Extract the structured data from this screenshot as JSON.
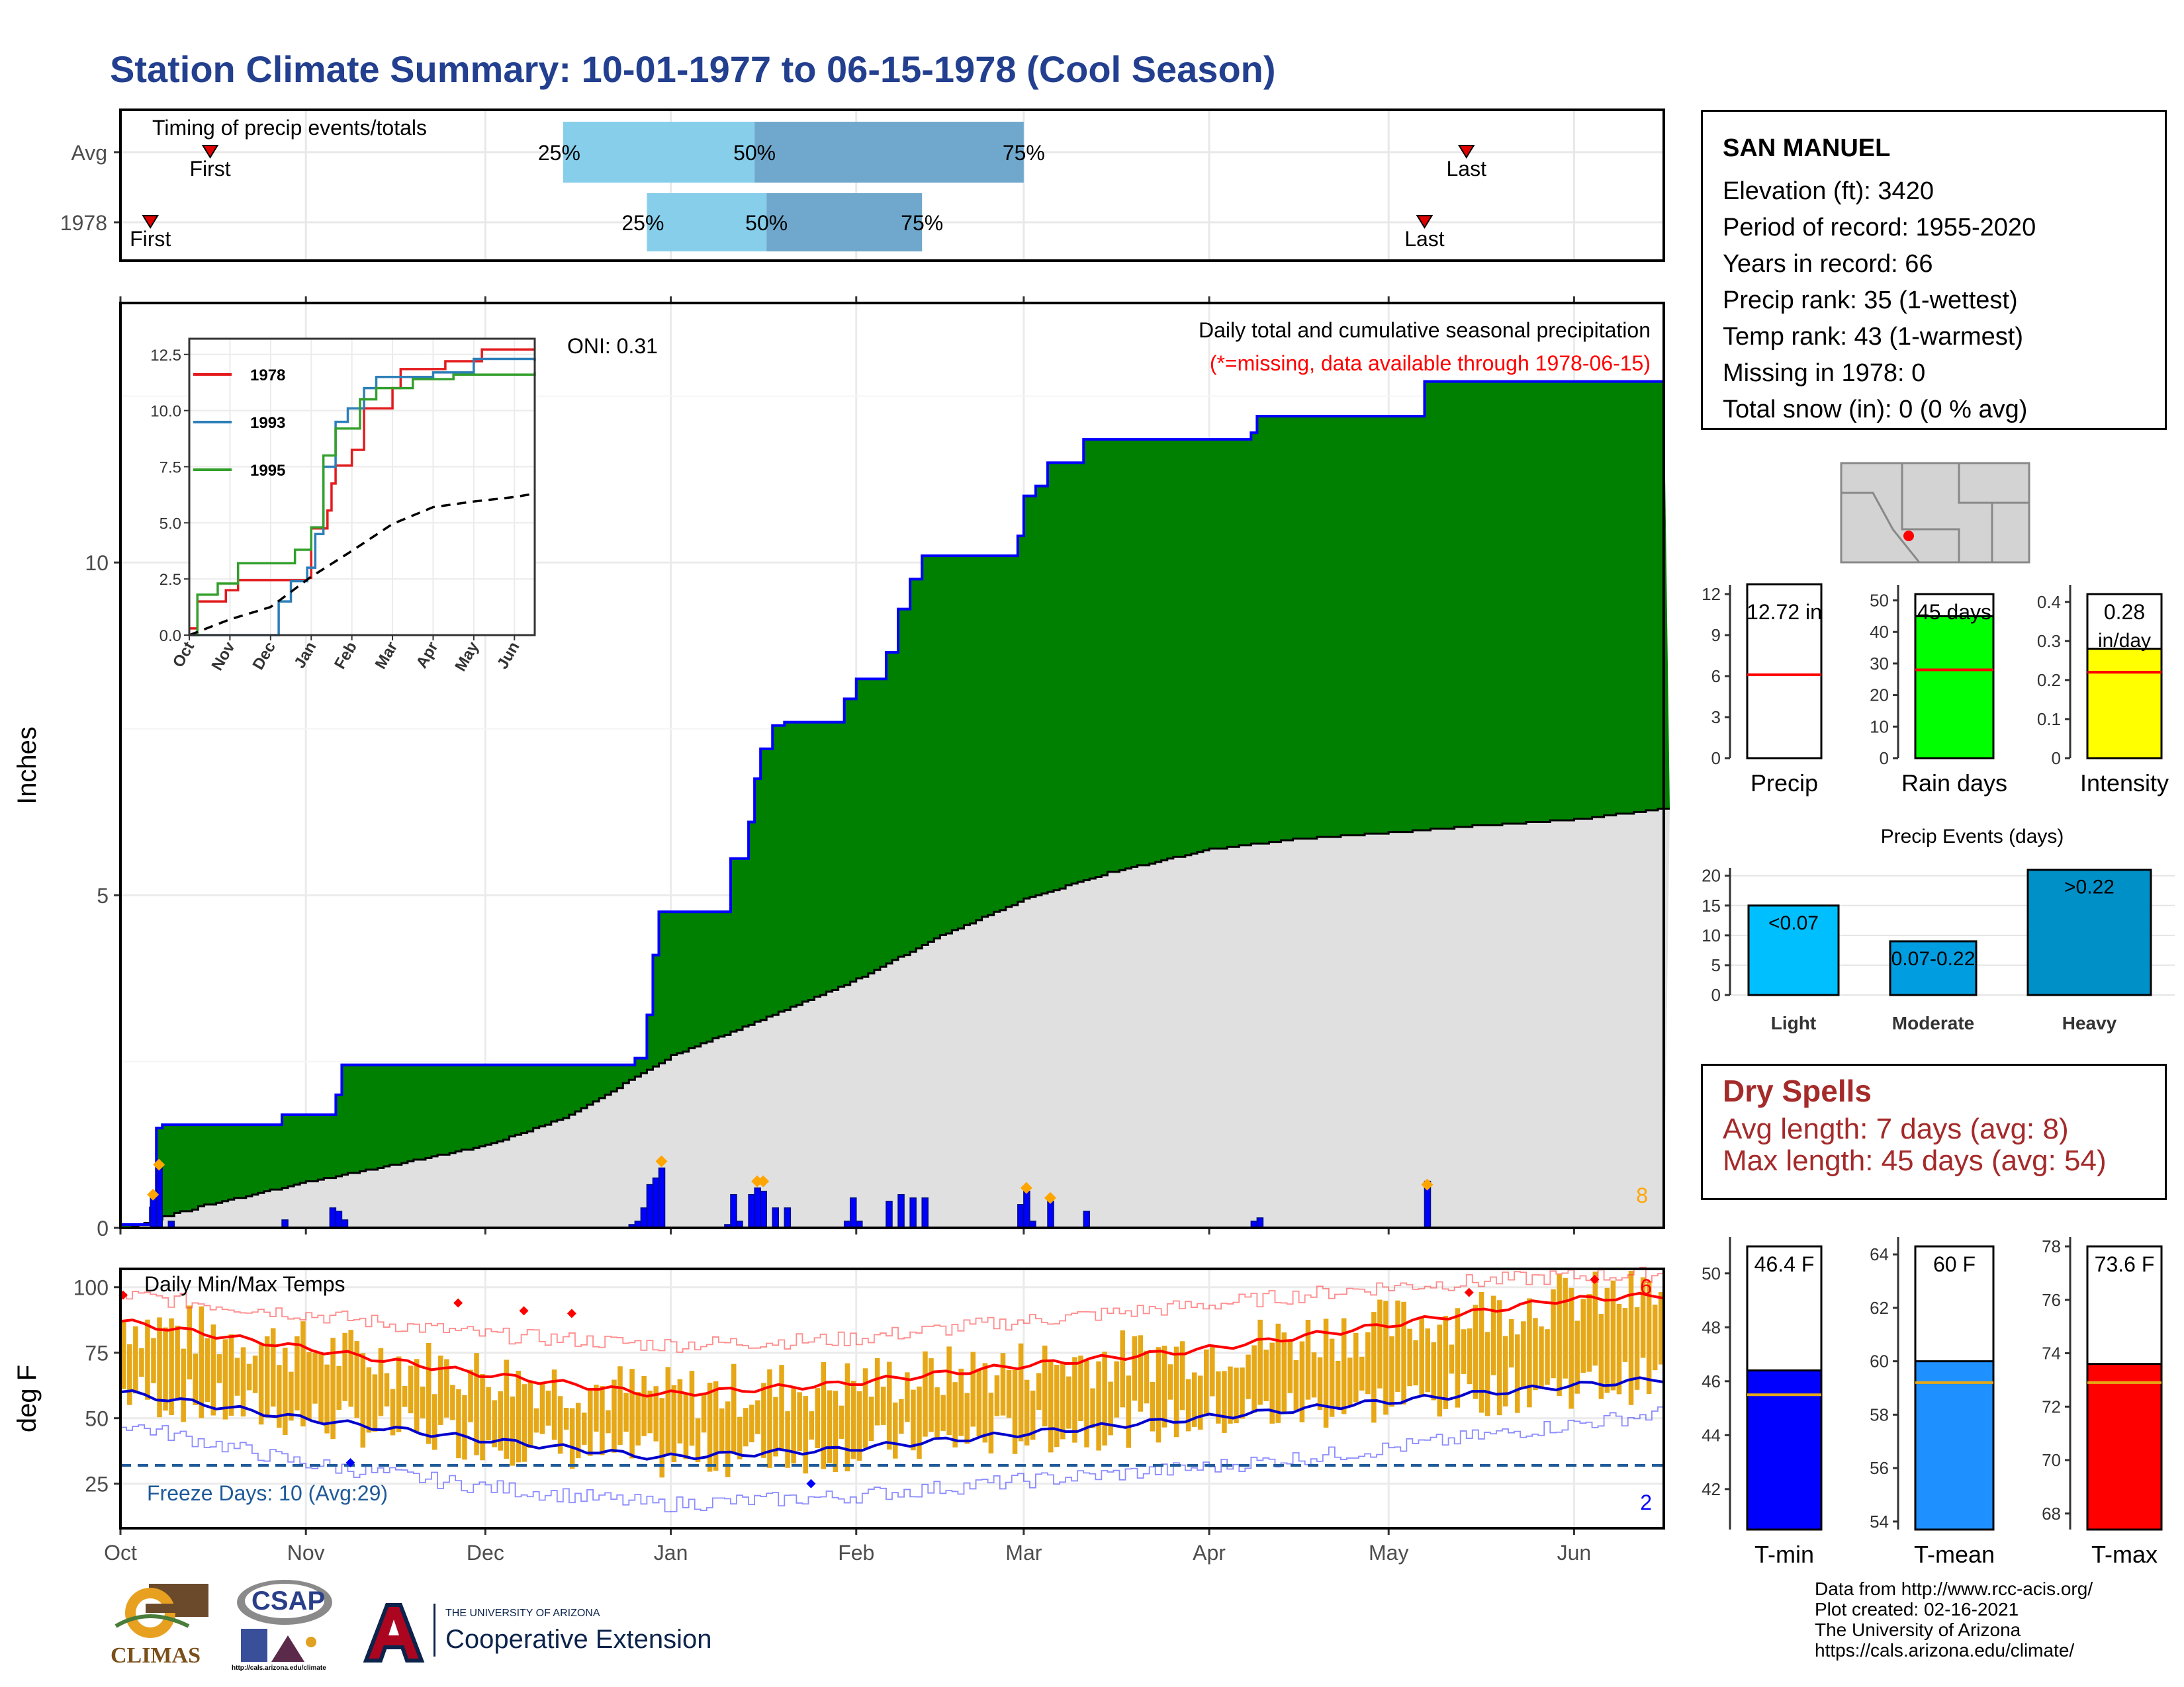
{
  "title": "Station Climate Summary: 10-01-1977 to 06-15-1978 (Cool Season)",
  "station": {
    "name": "SAN MANUEL",
    "lines": [
      "Elevation (ft): 3420",
      "Period of record: 1955-2020",
      "Years in record: 66",
      "Precip rank: 35 (1-wettest)",
      "Temp rank: 43 (1-warmest)",
      "Missing in 1978: 0",
      "Total snow (in): 0 (0 % avg)"
    ]
  },
  "dry_spells": {
    "title": "Dry Spells",
    "avg": "Avg length: 7 days (avg: 8)",
    "max": "Max length: 45 days (avg: 54)"
  },
  "credits": [
    "Data from http://www.rcc-acis.org/",
    "Plot created: 02-16-2021",
    "The University of Arizona",
    "https://cals.arizona.edu/climate/"
  ],
  "logos": {
    "climas": "CLIMAS",
    "csap": "CSAP",
    "csap_url": "http://cals.arizona.edu/climate",
    "ua_small": "THE UNIVERSITY OF ARIZONA",
    "ua_big": "Cooperative Extension"
  },
  "colors": {
    "title": "#233f8f",
    "precip_green": "#008000",
    "precip_line": "#0000ff",
    "normal_fill": "#e0e0e0",
    "temp_bar": "#e6a817",
    "tmax_line": "#ff0000",
    "tmin_line": "#0000cd",
    "freeze_line": "#1f5a99",
    "dry_spell": "#a52a2a",
    "timing_light": "#87ceeb",
    "timing_dark": "#6fa8cc"
  },
  "chart_data": [
    {
      "id": "timing",
      "type": "bar",
      "title": "Timing of precip events/totals",
      "rows": [
        {
          "label": "Avg",
          "first": "1977-10-16",
          "p25": "1977-12-14",
          "p50": "1978-01-15",
          "p75": "1978-03-01",
          "last": "1978-05-14",
          "first_label": "First",
          "last_label": "Last",
          "p25_label": "25%",
          "p50_label": "50%",
          "p75_label": "75%"
        },
        {
          "label": "1978",
          "first": "1977-10-06",
          "p25": "1977-12-28",
          "p50": "1978-01-17",
          "p75": "1978-02-12",
          "last": "1978-05-07",
          "first_label": "First",
          "last_label": "Last",
          "p25_label": "25%",
          "p50_label": "50%",
          "p75_label": "75%"
        }
      ]
    },
    {
      "id": "precip",
      "type": "area",
      "title": "Daily total and cumulative seasonal precipitation",
      "subtitle": "(*=missing, data available through 1978-06-15)",
      "oni": "ONI: 0.31",
      "ylabel": "Inches",
      "ylim": [
        0,
        13.9
      ],
      "yticks": [
        0,
        5,
        10
      ],
      "x_range": [
        "1977-10-01",
        "1978-06-15"
      ],
      "x_ticks": [
        "Oct",
        "Nov",
        "Dec",
        "Jan",
        "Feb",
        "Mar",
        "Apr",
        "May",
        "Jun"
      ],
      "corner_count": "8",
      "cumulative_1978": [
        [
          "1977-10-01",
          0.05
        ],
        [
          "1977-10-06",
          0.3
        ],
        [
          "1977-10-07",
          1.5
        ],
        [
          "1977-10-08",
          1.55
        ],
        [
          "1977-10-28",
          1.7
        ],
        [
          "1977-11-06",
          2.0
        ],
        [
          "1977-11-07",
          2.45
        ],
        [
          "1977-12-25",
          2.45
        ],
        [
          "1977-12-26",
          2.55
        ],
        [
          "1977-12-28",
          3.2
        ],
        [
          "1977-12-29",
          4.1
        ],
        [
          "1977-12-30",
          4.75
        ],
        [
          "1978-01-10",
          4.75
        ],
        [
          "1978-01-11",
          5.55
        ],
        [
          "1978-01-14",
          6.1
        ],
        [
          "1978-01-15",
          6.75
        ],
        [
          "1978-01-16",
          7.2
        ],
        [
          "1978-01-18",
          7.55
        ],
        [
          "1978-01-20",
          7.6
        ],
        [
          "1978-01-28",
          7.6
        ],
        [
          "1978-01-30",
          7.95
        ],
        [
          "1978-02-01",
          8.25
        ],
        [
          "1978-02-06",
          8.65
        ],
        [
          "1978-02-08",
          9.3
        ],
        [
          "1978-02-10",
          9.75
        ],
        [
          "1978-02-12",
          10.1
        ],
        [
          "1978-02-28",
          10.4
        ],
        [
          "1978-03-01",
          11.0
        ],
        [
          "1978-03-03",
          11.15
        ],
        [
          "1978-03-05",
          11.5
        ],
        [
          "1978-03-11",
          11.85
        ],
        [
          "1978-04-08",
          11.95
        ],
        [
          "1978-04-09",
          12.2
        ],
        [
          "1978-05-07",
          12.72
        ],
        [
          "1978-06-15",
          12.72
        ]
      ],
      "normal_cumulative": [
        [
          "1977-10-01",
          0.0
        ],
        [
          "1977-10-15",
          0.35
        ],
        [
          "1977-11-01",
          0.7
        ],
        [
          "1977-11-15",
          0.95
        ],
        [
          "1977-12-01",
          1.25
        ],
        [
          "1977-12-15",
          1.7
        ],
        [
          "1978-01-01",
          2.6
        ],
        [
          "1978-01-15",
          3.1
        ],
        [
          "1978-02-01",
          3.75
        ],
        [
          "1978-02-15",
          4.4
        ],
        [
          "1978-03-01",
          4.95
        ],
        [
          "1978-03-15",
          5.35
        ],
        [
          "1978-04-01",
          5.7
        ],
        [
          "1978-04-15",
          5.85
        ],
        [
          "1978-05-01",
          5.95
        ],
        [
          "1978-05-15",
          6.05
        ],
        [
          "1978-06-01",
          6.15
        ],
        [
          "1978-06-15",
          6.3
        ]
      ],
      "daily_bars": [
        [
          "1977-10-06",
          0.45
        ],
        [
          "1977-10-07",
          0.9
        ],
        [
          "1977-10-09",
          0.1
        ],
        [
          "1977-10-28",
          0.12
        ],
        [
          "1977-11-05",
          0.3
        ],
        [
          "1977-11-06",
          0.25
        ],
        [
          "1977-11-07",
          0.12
        ],
        [
          "1977-12-25",
          0.05
        ],
        [
          "1977-12-26",
          0.1
        ],
        [
          "1977-12-27",
          0.3
        ],
        [
          "1977-12-28",
          0.65
        ],
        [
          "1977-12-29",
          0.75
        ],
        [
          "1977-12-30",
          0.9
        ],
        [
          "1978-01-10",
          0.05
        ],
        [
          "1978-01-11",
          0.5
        ],
        [
          "1978-01-12",
          0.1
        ],
        [
          "1978-01-14",
          0.5
        ],
        [
          "1978-01-15",
          0.6
        ],
        [
          "1978-01-16",
          0.55
        ],
        [
          "1978-01-18",
          0.3
        ],
        [
          "1978-01-20",
          0.3
        ],
        [
          "1978-01-30",
          0.1
        ],
        [
          "1978-01-31",
          0.45
        ],
        [
          "1978-02-01",
          0.1
        ],
        [
          "1978-02-06",
          0.4
        ],
        [
          "1978-02-08",
          0.5
        ],
        [
          "1978-02-10",
          0.45
        ],
        [
          "1978-02-12",
          0.45
        ],
        [
          "1978-02-28",
          0.35
        ],
        [
          "1978-03-01",
          0.55
        ],
        [
          "1978-03-02",
          0.1
        ],
        [
          "1978-03-05",
          0.4
        ],
        [
          "1978-03-11",
          0.25
        ],
        [
          "1978-04-08",
          0.1
        ],
        [
          "1978-04-09",
          0.15
        ],
        [
          "1978-05-07",
          0.7
        ]
      ],
      "event_markers": [
        [
          "1977-10-06",
          0.5
        ],
        [
          "1977-10-07",
          0.95
        ],
        [
          "1977-12-30",
          1.0
        ],
        [
          "1978-01-15",
          0.7
        ],
        [
          "1978-01-16",
          0.7
        ],
        [
          "1978-03-01",
          0.6
        ],
        [
          "1978-03-05",
          0.45
        ],
        [
          "1978-05-07",
          0.65
        ]
      ]
    },
    {
      "id": "inset",
      "type": "line",
      "ylim": [
        0,
        12.5
      ],
      "yticks": [
        0.0,
        2.5,
        5.0,
        7.5,
        10.0,
        12.5
      ],
      "x_ticks": [
        "Oct",
        "Nov",
        "Dec",
        "Jan",
        "Feb",
        "Mar",
        "Apr",
        "May",
        "Jun"
      ],
      "series": [
        {
          "name": "1978",
          "color": "#e31a1c",
          "points": [
            [
              0,
              0.3
            ],
            [
              0.2,
              1.5
            ],
            [
              0.9,
              2.0
            ],
            [
              1.2,
              2.45
            ],
            [
              2.9,
              2.55
            ],
            [
              3.0,
              4.75
            ],
            [
              3.4,
              5.55
            ],
            [
              3.5,
              6.75
            ],
            [
              3.6,
              7.55
            ],
            [
              4.0,
              8.25
            ],
            [
              4.3,
              10.1
            ],
            [
              5.0,
              11.0
            ],
            [
              5.2,
              11.85
            ],
            [
              6.3,
              12.2
            ],
            [
              7.2,
              12.72
            ],
            [
              8.5,
              12.72
            ]
          ]
        },
        {
          "name": "1993",
          "color": "#2c7fb8",
          "points": [
            [
              0,
              0
            ],
            [
              2.0,
              0
            ],
            [
              2.2,
              1.5
            ],
            [
              2.5,
              2.4
            ],
            [
              2.9,
              3.0
            ],
            [
              3.1,
              4.5
            ],
            [
              3.3,
              7.5
            ],
            [
              3.6,
              9.5
            ],
            [
              3.9,
              10.1
            ],
            [
              4.3,
              11.0
            ],
            [
              4.6,
              11.5
            ],
            [
              6.0,
              11.7
            ],
            [
              7.0,
              12.3
            ],
            [
              8.0,
              12.3
            ],
            [
              8.5,
              12.2
            ]
          ]
        },
        {
          "name": "1995",
          "color": "#33a02c",
          "points": [
            [
              0,
              0
            ],
            [
              0.2,
              1.8
            ],
            [
              0.7,
              2.3
            ],
            [
              1.2,
              3.2
            ],
            [
              2.6,
              3.8
            ],
            [
              3.0,
              4.8
            ],
            [
              3.3,
              8.0
            ],
            [
              3.6,
              9.2
            ],
            [
              4.2,
              10.5
            ],
            [
              4.6,
              11.0
            ],
            [
              5.5,
              11.4
            ],
            [
              6.5,
              11.6
            ],
            [
              8.5,
              11.7
            ]
          ]
        },
        {
          "name": "",
          "color": "#000000",
          "dashed": true,
          "points": [
            [
              0,
              0
            ],
            [
              1.0,
              0.7
            ],
            [
              2.0,
              1.25
            ],
            [
              3.0,
              2.6
            ],
            [
              4.0,
              3.75
            ],
            [
              5.0,
              4.95
            ],
            [
              6.0,
              5.7
            ],
            [
              7.0,
              5.95
            ],
            [
              8.0,
              6.15
            ],
            [
              8.5,
              6.3
            ]
          ]
        }
      ]
    },
    {
      "id": "temps",
      "type": "bar",
      "title": "Daily Min/Max Temps",
      "ylabel": "deg F",
      "ylim": [
        8,
        107
      ],
      "yticks": [
        25,
        50,
        75,
        100
      ],
      "x_ticks": [
        "Oct",
        "Nov",
        "Dec",
        "Jan",
        "Feb",
        "Mar",
        "Apr",
        "May",
        "Jun"
      ],
      "freeze_label": "Freeze Days: 10 (Avg:29)",
      "freeze_value": 32,
      "count_hot": "6",
      "count_cold": "2",
      "avg_max": [
        [
          0,
          87
        ],
        [
          30,
          77
        ],
        [
          60,
          67
        ],
        [
          90,
          59
        ],
        [
          120,
          63
        ],
        [
          150,
          70
        ],
        [
          180,
          76
        ],
        [
          210,
          85
        ],
        [
          240,
          95
        ],
        [
          258,
          97
        ]
      ],
      "avg_min": [
        [
          0,
          60
        ],
        [
          30,
          50
        ],
        [
          60,
          42
        ],
        [
          90,
          35
        ],
        [
          120,
          38
        ],
        [
          150,
          44
        ],
        [
          180,
          50
        ],
        [
          210,
          56
        ],
        [
          240,
          62
        ],
        [
          258,
          65
        ]
      ],
      "record_max": [
        [
          0,
          97
        ],
        [
          30,
          90
        ],
        [
          60,
          82
        ],
        [
          90,
          78
        ],
        [
          120,
          80
        ],
        [
          150,
          87
        ],
        [
          180,
          93
        ],
        [
          210,
          100
        ],
        [
          240,
          104
        ],
        [
          258,
          105
        ]
      ],
      "record_min": [
        [
          0,
          48
        ],
        [
          30,
          33
        ],
        [
          60,
          24
        ],
        [
          90,
          17
        ],
        [
          120,
          20
        ],
        [
          150,
          26
        ],
        [
          180,
          31
        ],
        [
          210,
          38
        ],
        [
          240,
          47
        ],
        [
          258,
          52
        ]
      ]
    },
    {
      "id": "precip_bars",
      "type": "bar",
      "categories": [
        "Precip",
        "Rain days",
        "Intensity"
      ],
      "values": [
        12.72,
        45,
        0.28
      ],
      "averages": [
        6.1,
        28,
        0.22
      ],
      "labels": [
        "12.72 in",
        "45 days",
        "0.28 in/day"
      ],
      "ylims": [
        [
          0,
          12
        ],
        [
          0,
          52
        ],
        [
          0,
          0.42
        ]
      ],
      "yticks": [
        [
          0,
          3,
          6,
          9,
          12
        ],
        [
          0,
          10,
          20,
          30,
          40,
          50
        ],
        [
          0.0,
          0.1,
          0.2,
          0.3,
          0.4
        ]
      ],
      "colors": [
        "#ffffff",
        "#00ff00",
        "#ffff00"
      ]
    },
    {
      "id": "precip_events",
      "type": "bar",
      "title": "Precip Events (days)",
      "categories": [
        "Light",
        "Moderate",
        "Heavy"
      ],
      "bar_labels": [
        "<0.07",
        "0.07-0.22",
        ">0.22"
      ],
      "values": [
        15,
        9,
        21
      ],
      "ylim": [
        0,
        21
      ],
      "yticks": [
        0,
        5,
        10,
        15,
        20
      ],
      "colors": [
        "#00bfff",
        "#009ee0",
        "#0090c8"
      ]
    },
    {
      "id": "temp_bars",
      "type": "bar",
      "categories": [
        "T-min",
        "T-mean",
        "T-max"
      ],
      "values": [
        46.4,
        60,
        73.6
      ],
      "averages": [
        45.5,
        59.2,
        72.9
      ],
      "labels": [
        "46.4 F",
        "60 F",
        "73.6 F"
      ],
      "ylims": [
        [
          40.5,
          51
        ],
        [
          53.7,
          64.3
        ],
        [
          67.4,
          78
        ]
      ],
      "yticks": [
        [
          42,
          44,
          46,
          48,
          50
        ],
        [
          54,
          56,
          58,
          60,
          62,
          64
        ],
        [
          68,
          70,
          72,
          74,
          76,
          78
        ]
      ],
      "colors": [
        "#0000ff",
        "#1e90ff",
        "#ff0000"
      ]
    }
  ]
}
